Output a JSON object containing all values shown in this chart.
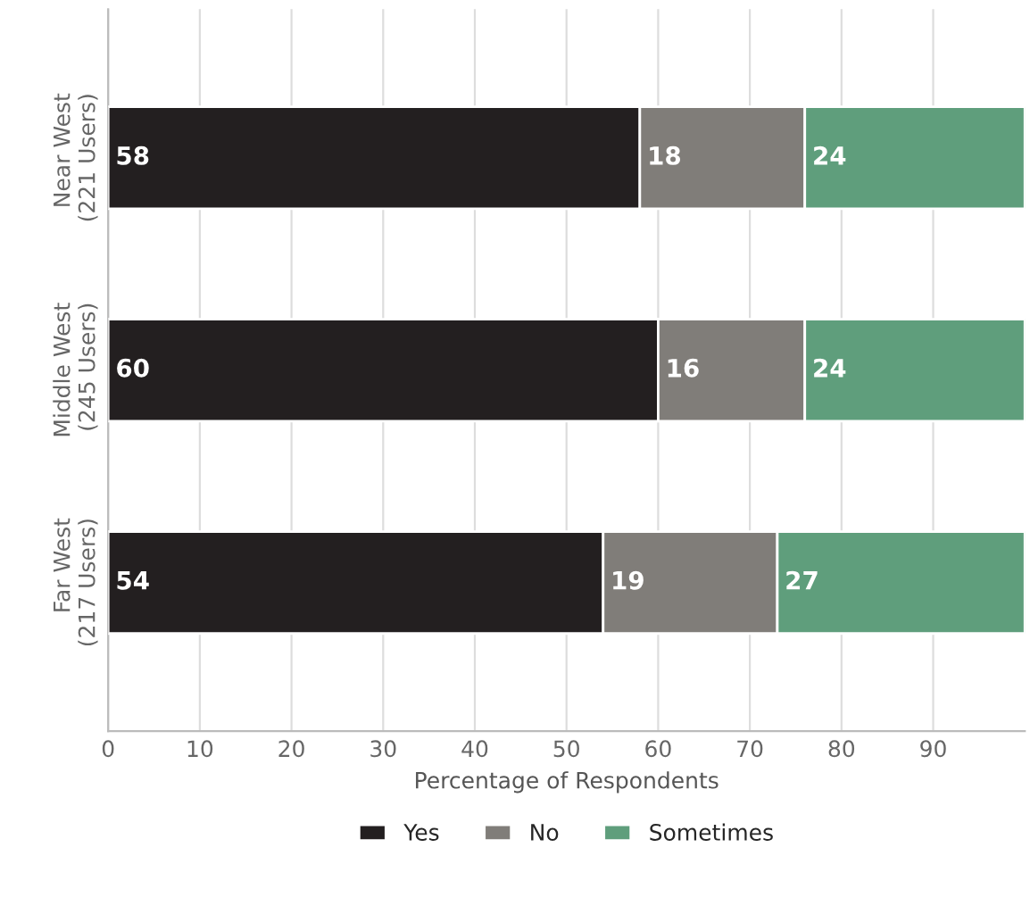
{
  "chart_data": {
    "type": "bar",
    "orientation": "horizontal",
    "stacked": true,
    "categories": [
      "Near West\n(221 Users)",
      "Middle West\n(245 Users)",
      "Far West\n(217 Users)"
    ],
    "series": [
      {
        "name": "Yes",
        "color": "#231f20",
        "values": [
          58,
          60,
          54
        ]
      },
      {
        "name": "No",
        "color": "#807d79",
        "values": [
          18,
          16,
          19
        ]
      },
      {
        "name": "Sometimes",
        "color": "#5f9e7c",
        "values": [
          24,
          24,
          27
        ]
      }
    ],
    "xlabel": "Percentage of Respondents",
    "xlim": [
      0,
      100
    ],
    "xticks": [
      0,
      10,
      20,
      30,
      40,
      50,
      60,
      70,
      80,
      90
    ],
    "grid": "x",
    "legend": "bottom",
    "data_labels": true
  }
}
